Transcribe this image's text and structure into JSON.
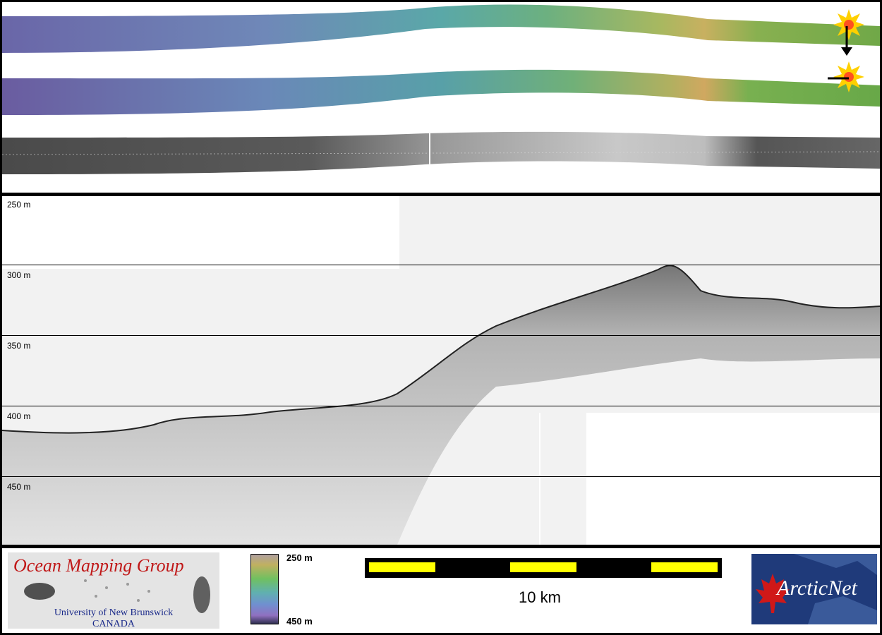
{
  "depth_labels": [
    "250 m",
    "300 m",
    "350 m",
    "400 m",
    "450 m"
  ],
  "omg_logo": {
    "title": "Ocean Mapping Group",
    "university": "University of New Brunswick",
    "country": "CANADA"
  },
  "colorbar": {
    "top_label": "250 m",
    "bottom_label": "450 m"
  },
  "scale_bar": {
    "label": "10 km",
    "color": "#ffff00"
  },
  "arcticnet_logo": {
    "text": "ArcticNet"
  },
  "icons": [
    "sun-illumination-icon",
    "arrow-down-icon",
    "arrow-left-icon",
    "maple-leaf-icon"
  ]
}
